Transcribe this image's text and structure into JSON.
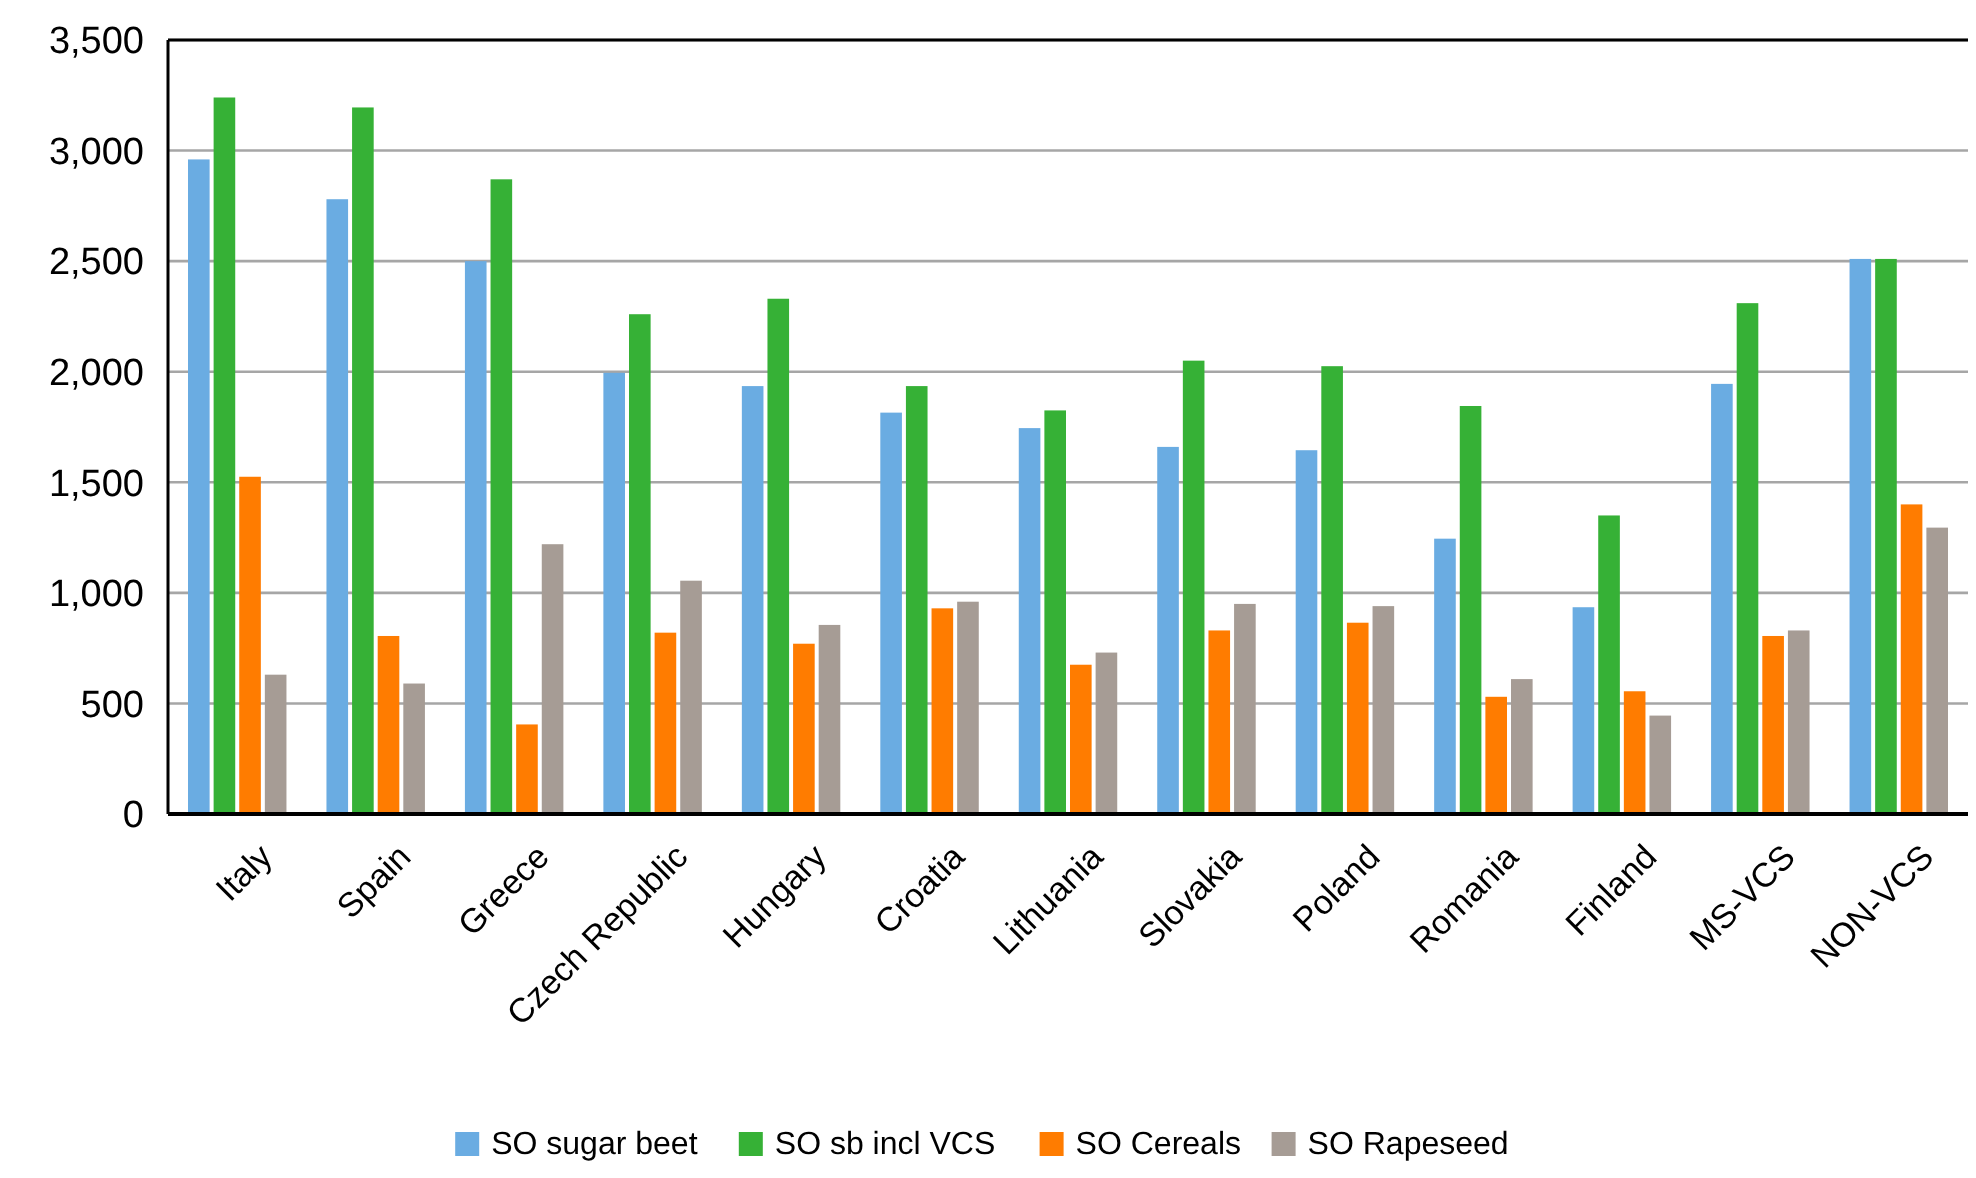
{
  "chart_data": {
    "type": "bar",
    "categories": [
      "Italy",
      "Spain",
      "Greece",
      "Czech Republic",
      "Hungary",
      "Croatia",
      "Lithuania",
      "Slovakia",
      "Poland",
      "Romania",
      "Finland",
      "MS-VCS",
      "NON-VCS"
    ],
    "series": [
      {
        "name": "SO sugar beet",
        "color": "#6aace2",
        "values": [
          2960,
          2780,
          2500,
          1995,
          1935,
          1815,
          1745,
          1660,
          1645,
          1245,
          935,
          1945,
          2510
        ]
      },
      {
        "name": "SO sb incl VCS",
        "color": "#36b136",
        "values": [
          3240,
          3195,
          2870,
          2260,
          2330,
          1935,
          1825,
          2050,
          2025,
          1845,
          1350,
          2310,
          2510
        ]
      },
      {
        "name": "SO Cereals",
        "color": "#ff7c00",
        "values": [
          1525,
          805,
          405,
          820,
          770,
          930,
          675,
          830,
          865,
          530,
          555,
          805,
          1400
        ]
      },
      {
        "name": "SO Rapeseed",
        "color": "#a69c95",
        "values": [
          630,
          590,
          1220,
          1055,
          855,
          960,
          730,
          950,
          940,
          610,
          445,
          830,
          1295
        ]
      }
    ],
    "ylim": [
      0,
      3500
    ],
    "yticks": [
      {
        "value": 0,
        "label": "0"
      },
      {
        "value": 500,
        "label": "500"
      },
      {
        "value": 1000,
        "label": "1,000"
      },
      {
        "value": 1500,
        "label": "1,500"
      },
      {
        "value": 2000,
        "label": "2,000"
      },
      {
        "value": 2500,
        "label": "2,500"
      },
      {
        "value": 3000,
        "label": "3,000"
      },
      {
        "value": 3500,
        "label": "3,500"
      }
    ],
    "grid": "y",
    "legend": "bottom"
  }
}
